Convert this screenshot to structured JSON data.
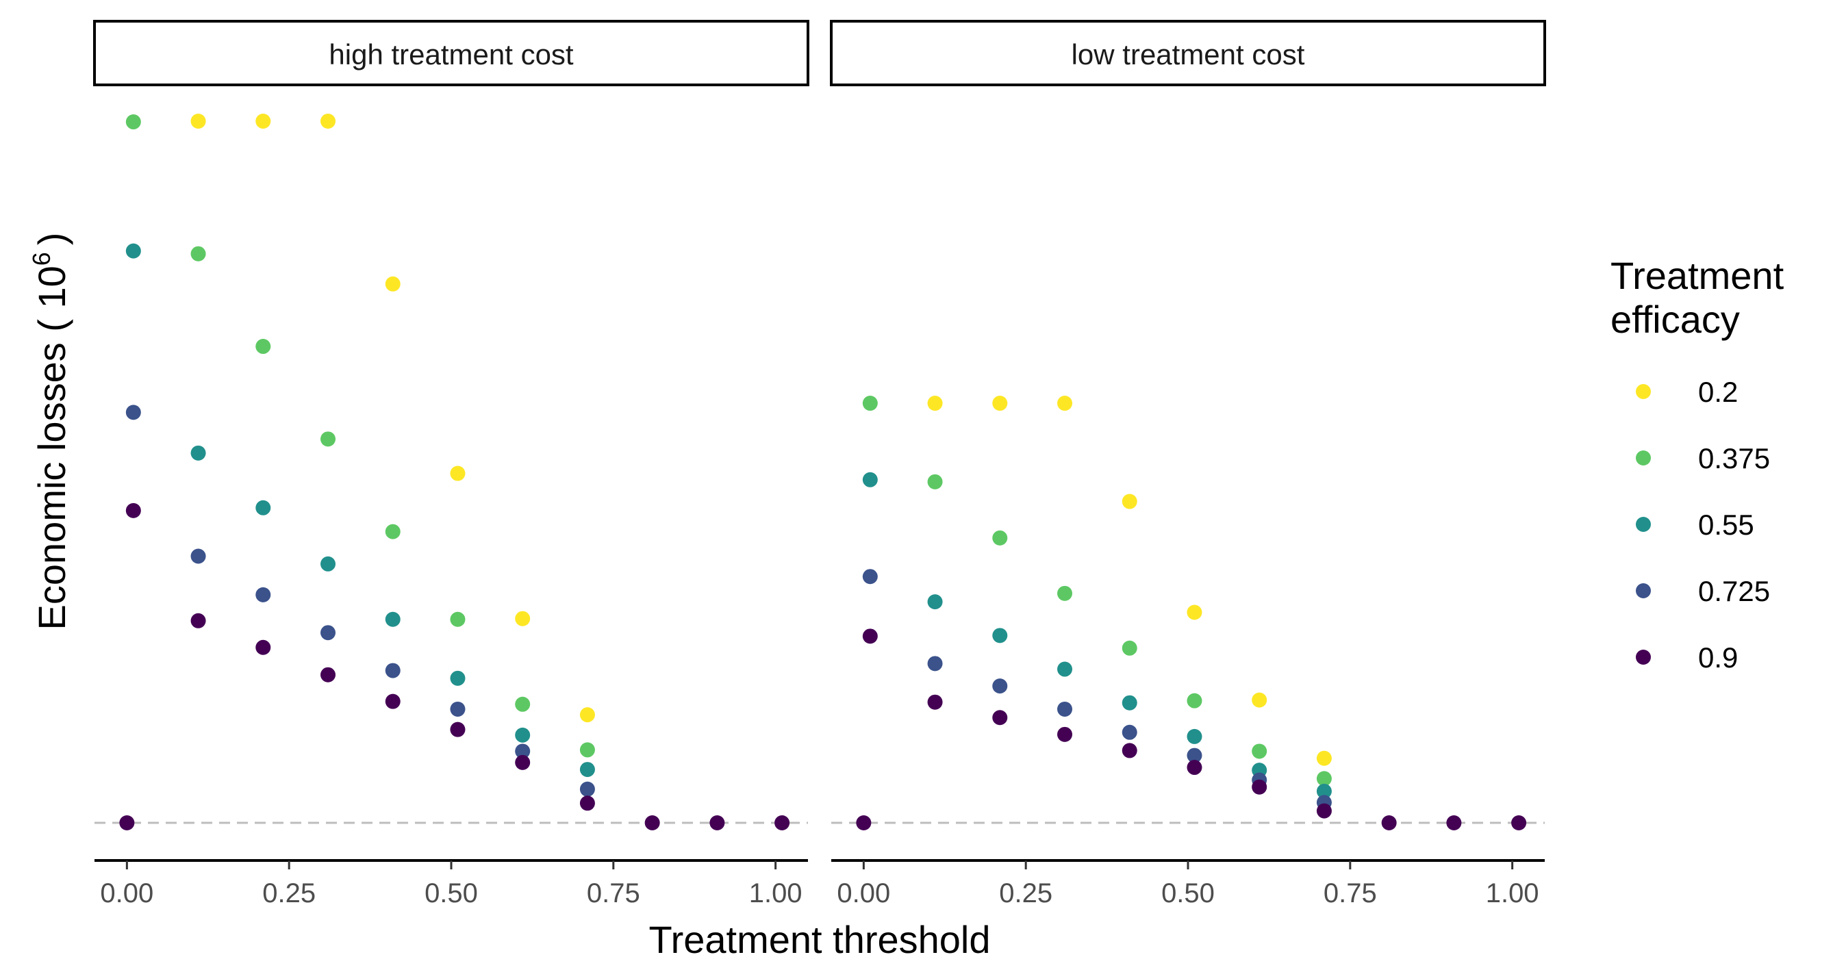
{
  "chart_data": {
    "type": "scatter",
    "xlabel": "Treatment threshold",
    "ylabel_main": "Economic losses ( 10",
    "ylabel_sup": "6",
    "ylabel_close": ")",
    "xlim": [
      -0.05,
      1.05
    ],
    "ylim": [
      -0.05,
      1.05
    ],
    "x_ticks": [
      0,
      0.25,
      0.5,
      0.75,
      1
    ],
    "x_tick_labels": [
      "0.00",
      "0.25",
      "0.50",
      "0.75",
      "1.00"
    ],
    "y_axis_ticks_shown": false,
    "baseline": {
      "y": 0,
      "style": "dashed",
      "color": "#bdbdbd"
    },
    "legend": {
      "title_lines": [
        "Treatment",
        "efficacy"
      ],
      "placement": "right",
      "entries": [
        {
          "label": "0.2",
          "color": "#FDE725"
        },
        {
          "label": "0.375",
          "color": "#5DC863"
        },
        {
          "label": "0.55",
          "color": "#21908C"
        },
        {
          "label": "0.725",
          "color": "#3B528B"
        },
        {
          "label": "0.9",
          "color": "#440154"
        }
      ]
    },
    "panels": [
      {
        "label": "high treatment cost",
        "series": [
          {
            "name": "0.2",
            "color": "#FDE725",
            "points": [
              [
                0.11,
                1.0
              ],
              [
                0.21,
                1.0
              ],
              [
                0.31,
                1.0
              ],
              [
                0.41,
                0.768
              ],
              [
                0.51,
                0.498
              ],
              [
                0.61,
                0.291
              ],
              [
                0.71,
                0.154
              ]
            ]
          },
          {
            "name": "0.375",
            "color": "#5DC863",
            "points": [
              [
                0.01,
                0.999
              ],
              [
                0.11,
                0.811
              ],
              [
                0.21,
                0.679
              ],
              [
                0.31,
                0.547
              ],
              [
                0.41,
                0.415
              ],
              [
                0.51,
                0.29
              ],
              [
                0.61,
                0.169
              ],
              [
                0.71,
                0.104
              ]
            ]
          },
          {
            "name": "0.55",
            "color": "#21908C",
            "points": [
              [
                0.01,
                0.815
              ],
              [
                0.11,
                0.527
              ],
              [
                0.21,
                0.449
              ],
              [
                0.31,
                0.369
              ],
              [
                0.41,
                0.29
              ],
              [
                0.51,
                0.206
              ],
              [
                0.61,
                0.125
              ],
              [
                0.71,
                0.076
              ]
            ]
          },
          {
            "name": "0.725",
            "color": "#3B528B",
            "points": [
              [
                0.01,
                0.585
              ],
              [
                0.11,
                0.38
              ],
              [
                0.21,
                0.325
              ],
              [
                0.31,
                0.271
              ],
              [
                0.41,
                0.217
              ],
              [
                0.51,
                0.162
              ],
              [
                0.61,
                0.102
              ],
              [
                0.71,
                0.048
              ]
            ]
          },
          {
            "name": "0.9",
            "color": "#440154",
            "points": [
              [
                0.0,
                0.0
              ],
              [
                0.01,
                0.445
              ],
              [
                0.11,
                0.288
              ],
              [
                0.21,
                0.25
              ],
              [
                0.31,
                0.211
              ],
              [
                0.41,
                0.173
              ],
              [
                0.51,
                0.133
              ],
              [
                0.61,
                0.086
              ],
              [
                0.71,
                0.028
              ],
              [
                0.81,
                0.0
              ],
              [
                0.91,
                0.0
              ],
              [
                1.01,
                0.0
              ]
            ]
          }
        ]
      },
      {
        "label": "low treatment cost",
        "series": [
          {
            "name": "0.2",
            "color": "#FDE725",
            "points": [
              [
                0.11,
                0.598
              ],
              [
                0.21,
                0.598
              ],
              [
                0.31,
                0.598
              ],
              [
                0.41,
                0.458
              ],
              [
                0.51,
                0.3
              ],
              [
                0.61,
                0.175
              ],
              [
                0.71,
                0.092
              ]
            ]
          },
          {
            "name": "0.375",
            "color": "#5DC863",
            "points": [
              [
                0.01,
                0.598
              ],
              [
                0.11,
                0.486
              ],
              [
                0.21,
                0.406
              ],
              [
                0.31,
                0.327
              ],
              [
                0.41,
                0.249
              ],
              [
                0.51,
                0.174
              ],
              [
                0.61,
                0.102
              ],
              [
                0.71,
                0.063
              ]
            ]
          },
          {
            "name": "0.55",
            "color": "#21908C",
            "points": [
              [
                0.01,
                0.489
              ],
              [
                0.11,
                0.315
              ],
              [
                0.21,
                0.267
              ],
              [
                0.31,
                0.219
              ],
              [
                0.41,
                0.171
              ],
              [
                0.51,
                0.123
              ],
              [
                0.61,
                0.075
              ],
              [
                0.71,
                0.045
              ]
            ]
          },
          {
            "name": "0.725",
            "color": "#3B528B",
            "points": [
              [
                0.01,
                0.351
              ],
              [
                0.11,
                0.227
              ],
              [
                0.21,
                0.195
              ],
              [
                0.31,
                0.162
              ],
              [
                0.41,
                0.129
              ],
              [
                0.51,
                0.096
              ],
              [
                0.61,
                0.061
              ],
              [
                0.71,
                0.029
              ]
            ]
          },
          {
            "name": "0.9",
            "color": "#440154",
            "points": [
              [
                0.0,
                0.0
              ],
              [
                0.01,
                0.266
              ],
              [
                0.11,
                0.172
              ],
              [
                0.21,
                0.15
              ],
              [
                0.31,
                0.126
              ],
              [
                0.41,
                0.103
              ],
              [
                0.51,
                0.079
              ],
              [
                0.61,
                0.051
              ],
              [
                0.71,
                0.017
              ],
              [
                0.81,
                0.0
              ],
              [
                0.91,
                0.0
              ],
              [
                1.01,
                0.0
              ]
            ]
          }
        ]
      }
    ]
  }
}
